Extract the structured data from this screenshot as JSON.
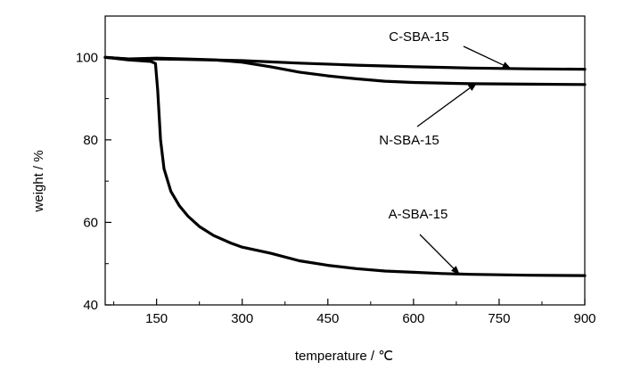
{
  "chart_data": {
    "type": "line",
    "xlabel": "temperature / ℃",
    "ylabel": "weight / %",
    "xlim": [
      60,
      900
    ],
    "ylim": [
      40,
      110
    ],
    "x_ticks": [
      150,
      300,
      450,
      600,
      750,
      900
    ],
    "y_ticks": [
      40,
      60,
      80,
      100
    ],
    "grid": false,
    "legend": "none",
    "line_color": "#000000",
    "series": [
      {
        "name": "C-SBA-15",
        "points": [
          [
            60,
            100
          ],
          [
            100,
            99.6
          ],
          [
            150,
            99.6
          ],
          [
            200,
            99.5
          ],
          [
            300,
            99.2
          ],
          [
            400,
            98.6
          ],
          [
            500,
            98.1
          ],
          [
            600,
            97.7
          ],
          [
            700,
            97.4
          ],
          [
            800,
            97.2
          ],
          [
            900,
            97.1
          ]
        ]
      },
      {
        "name": "N-SBA-15",
        "points": [
          [
            60,
            100
          ],
          [
            100,
            99.6
          ],
          [
            150,
            99.8
          ],
          [
            200,
            99.6
          ],
          [
            250,
            99.4
          ],
          [
            300,
            98.8
          ],
          [
            350,
            97.7
          ],
          [
            400,
            96.4
          ],
          [
            450,
            95.5
          ],
          [
            500,
            94.8
          ],
          [
            550,
            94.2
          ],
          [
            600,
            93.9
          ],
          [
            700,
            93.6
          ],
          [
            800,
            93.5
          ],
          [
            900,
            93.4
          ]
        ]
      },
      {
        "name": "A-SBA-15",
        "points": [
          [
            60,
            100
          ],
          [
            100,
            99.4
          ],
          [
            140,
            99
          ],
          [
            148,
            98.5
          ],
          [
            152,
            92
          ],
          [
            157,
            80
          ],
          [
            163,
            73
          ],
          [
            175,
            67.5
          ],
          [
            190,
            64
          ],
          [
            205,
            61.5
          ],
          [
            225,
            59
          ],
          [
            250,
            56.8
          ],
          [
            280,
            55
          ],
          [
            300,
            54
          ],
          [
            350,
            52.5
          ],
          [
            400,
            50.7
          ],
          [
            450,
            49.6
          ],
          [
            500,
            48.8
          ],
          [
            550,
            48.2
          ],
          [
            600,
            47.9
          ],
          [
            650,
            47.6
          ],
          [
            700,
            47.4
          ],
          [
            800,
            47.2
          ],
          [
            900,
            47.1
          ]
        ]
      }
    ],
    "annotations": [
      {
        "text": "C-SBA-15",
        "points_to": [
          770,
          97.3
        ]
      },
      {
        "text": "N-SBA-15",
        "points_to": [
          710,
          93.7
        ]
      },
      {
        "text": "A-SBA-15",
        "points_to": [
          680,
          47.5
        ]
      }
    ]
  }
}
